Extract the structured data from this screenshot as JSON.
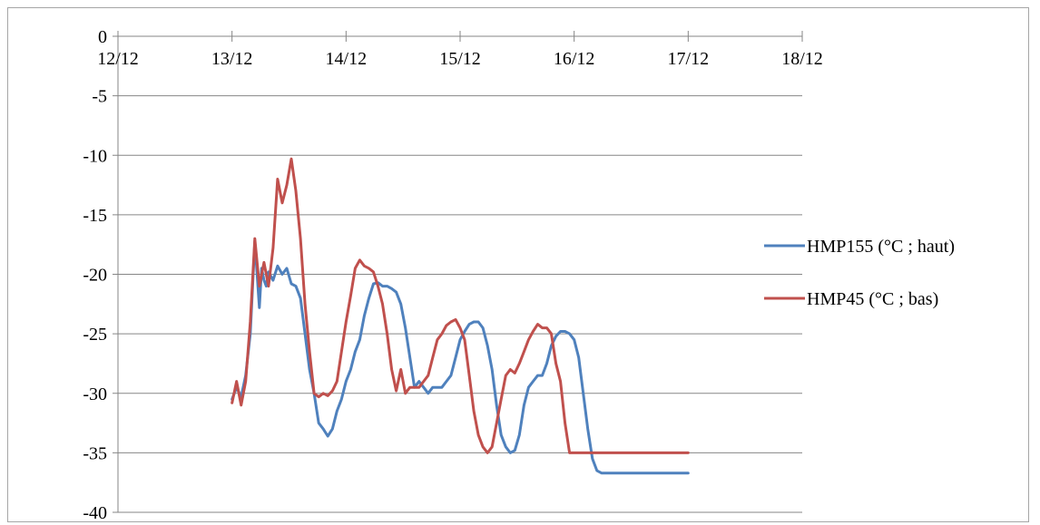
{
  "chart_data": {
    "type": "line",
    "title": "",
    "xlabel": "",
    "ylabel": "",
    "x_tick_labels": [
      "12/12",
      "13/12",
      "14/12",
      "15/12",
      "16/12",
      "17/12",
      "18/12"
    ],
    "y_tick_labels": [
      "0",
      "-5",
      "-10",
      "-15",
      "-20",
      "-25",
      "-30",
      "-35",
      "-40"
    ],
    "xlim": [
      0,
      6
    ],
    "ylim": [
      -40,
      0
    ],
    "x_units_note": "days from 12/12",
    "grid": "horizontal",
    "legend_position": "right",
    "series": [
      {
        "name": "HMP155 (°C ; haut)",
        "color": "#4f81bd",
        "x": [
          1.0,
          1.04,
          1.08,
          1.12,
          1.16,
          1.2,
          1.24,
          1.26,
          1.28,
          1.3,
          1.32,
          1.36,
          1.4,
          1.44,
          1.48,
          1.52,
          1.56,
          1.6,
          1.64,
          1.68,
          1.72,
          1.76,
          1.8,
          1.84,
          1.88,
          1.92,
          1.96,
          2.0,
          2.04,
          2.08,
          2.12,
          2.16,
          2.2,
          2.24,
          2.28,
          2.32,
          2.36,
          2.4,
          2.44,
          2.48,
          2.52,
          2.56,
          2.6,
          2.64,
          2.68,
          2.72,
          2.76,
          2.8,
          2.84,
          2.88,
          2.92,
          2.96,
          3.0,
          3.04,
          3.08,
          3.12,
          3.16,
          3.2,
          3.24,
          3.28,
          3.32,
          3.36,
          3.4,
          3.44,
          3.48,
          3.52,
          3.56,
          3.6,
          3.64,
          3.68,
          3.72,
          3.76,
          3.8,
          3.84,
          3.88,
          3.92,
          3.96,
          4.0,
          4.04,
          4.08,
          4.12,
          4.16,
          4.2,
          4.24,
          4.28,
          4.32,
          4.36,
          4.4,
          4.44,
          4.48,
          4.52,
          4.56,
          4.6,
          4.64,
          4.68,
          4.72,
          4.76,
          4.8,
          4.84,
          4.88,
          4.92,
          4.96,
          5.0
        ],
        "y": [
          -30.5,
          -29.5,
          -30.3,
          -28.5,
          -25.0,
          -17.2,
          -22.8,
          -19.5,
          -20.5,
          -21.0,
          -19.8,
          -20.5,
          -19.3,
          -20.0,
          -19.5,
          -20.8,
          -21.0,
          -22.0,
          -25.0,
          -28.0,
          -30.0,
          -32.5,
          -33.0,
          -33.6,
          -33.0,
          -31.5,
          -30.5,
          -29.0,
          -28.0,
          -26.5,
          -25.5,
          -23.5,
          -22.0,
          -20.8,
          -20.7,
          -21.0,
          -21.0,
          -21.2,
          -21.5,
          -22.5,
          -24.5,
          -27.0,
          -29.5,
          -29.0,
          -29.5,
          -30.0,
          -29.5,
          -29.5,
          -29.5,
          -29.0,
          -28.5,
          -27.0,
          -25.5,
          -24.8,
          -24.2,
          -24.0,
          -24.0,
          -24.5,
          -26.0,
          -28.0,
          -31.0,
          -33.5,
          -34.5,
          -35.0,
          -34.8,
          -33.5,
          -31.0,
          -29.5,
          -29.0,
          -28.5,
          -28.5,
          -27.5,
          -26.0,
          -25.2,
          -24.8,
          -24.8,
          -25.0,
          -25.5,
          -27.0,
          -30.0,
          -33.0,
          -35.5,
          -36.5,
          -36.7,
          -36.7,
          -36.7,
          -36.7,
          -36.7,
          -36.7,
          -36.7,
          -36.7,
          -36.7,
          -36.7,
          -36.7,
          -36.7,
          -36.7,
          -36.7,
          -36.7,
          -36.7,
          -36.7,
          -36.7,
          -36.7,
          -36.7
        ]
      },
      {
        "name": "HMP45 (°C ; bas)",
        "color": "#c0504d",
        "x": [
          1.0,
          1.04,
          1.08,
          1.12,
          1.16,
          1.2,
          1.24,
          1.28,
          1.32,
          1.36,
          1.4,
          1.44,
          1.48,
          1.52,
          1.56,
          1.6,
          1.64,
          1.68,
          1.72,
          1.76,
          1.8,
          1.84,
          1.88,
          1.92,
          1.96,
          2.0,
          2.04,
          2.08,
          2.12,
          2.16,
          2.2,
          2.24,
          2.28,
          2.32,
          2.36,
          2.4,
          2.44,
          2.48,
          2.52,
          2.56,
          2.6,
          2.64,
          2.68,
          2.72,
          2.76,
          2.8,
          2.84,
          2.88,
          2.92,
          2.96,
          3.0,
          3.04,
          3.08,
          3.12,
          3.16,
          3.2,
          3.24,
          3.28,
          3.32,
          3.36,
          3.4,
          3.44,
          3.48,
          3.52,
          3.56,
          3.6,
          3.64,
          3.68,
          3.72,
          3.76,
          3.8,
          3.84,
          3.88,
          3.92,
          3.96,
          4.0,
          4.04,
          4.08,
          4.12,
          4.16,
          4.2,
          4.24,
          4.28,
          4.32,
          4.36,
          4.4,
          4.44,
          4.48,
          4.52,
          4.56,
          4.6,
          4.64,
          4.68,
          4.72,
          4.76,
          4.8,
          4.84,
          4.88,
          4.92,
          4.96,
          5.0
        ],
        "y": [
          -30.8,
          -29.0,
          -31.0,
          -29.0,
          -24.0,
          -17.0,
          -21.0,
          -19.0,
          -21.0,
          -17.8,
          -12.0,
          -14.0,
          -12.5,
          -10.3,
          -13.0,
          -17.0,
          -22.5,
          -26.5,
          -30.0,
          -30.3,
          -30.0,
          -30.2,
          -29.8,
          -29.0,
          -26.5,
          -24.0,
          -21.8,
          -19.5,
          -18.8,
          -19.3,
          -19.5,
          -19.8,
          -21.0,
          -22.5,
          -25.0,
          -28.0,
          -29.8,
          -28.0,
          -30.0,
          -29.5,
          -29.5,
          -29.5,
          -29.0,
          -28.5,
          -27.0,
          -25.5,
          -25.0,
          -24.3,
          -24.0,
          -23.8,
          -24.5,
          -25.5,
          -28.5,
          -31.5,
          -33.5,
          -34.5,
          -35.0,
          -34.5,
          -32.5,
          -30.5,
          -28.5,
          -28.0,
          -28.3,
          -27.5,
          -26.5,
          -25.5,
          -24.8,
          -24.2,
          -24.5,
          -24.5,
          -25.0,
          -27.5,
          -29.0,
          -32.5,
          -35.0,
          -35.0,
          -35.0,
          -35.0,
          -35.0,
          -35.0,
          -35.0,
          -35.0,
          -35.0,
          -35.0,
          -35.0,
          -35.0,
          -35.0,
          -35.0,
          -35.0,
          -35.0,
          -35.0,
          -35.0,
          -35.0,
          -35.0,
          -35.0,
          -35.0,
          -35.0,
          -35.0,
          -35.0,
          -35.0,
          -35.0
        ]
      }
    ]
  }
}
